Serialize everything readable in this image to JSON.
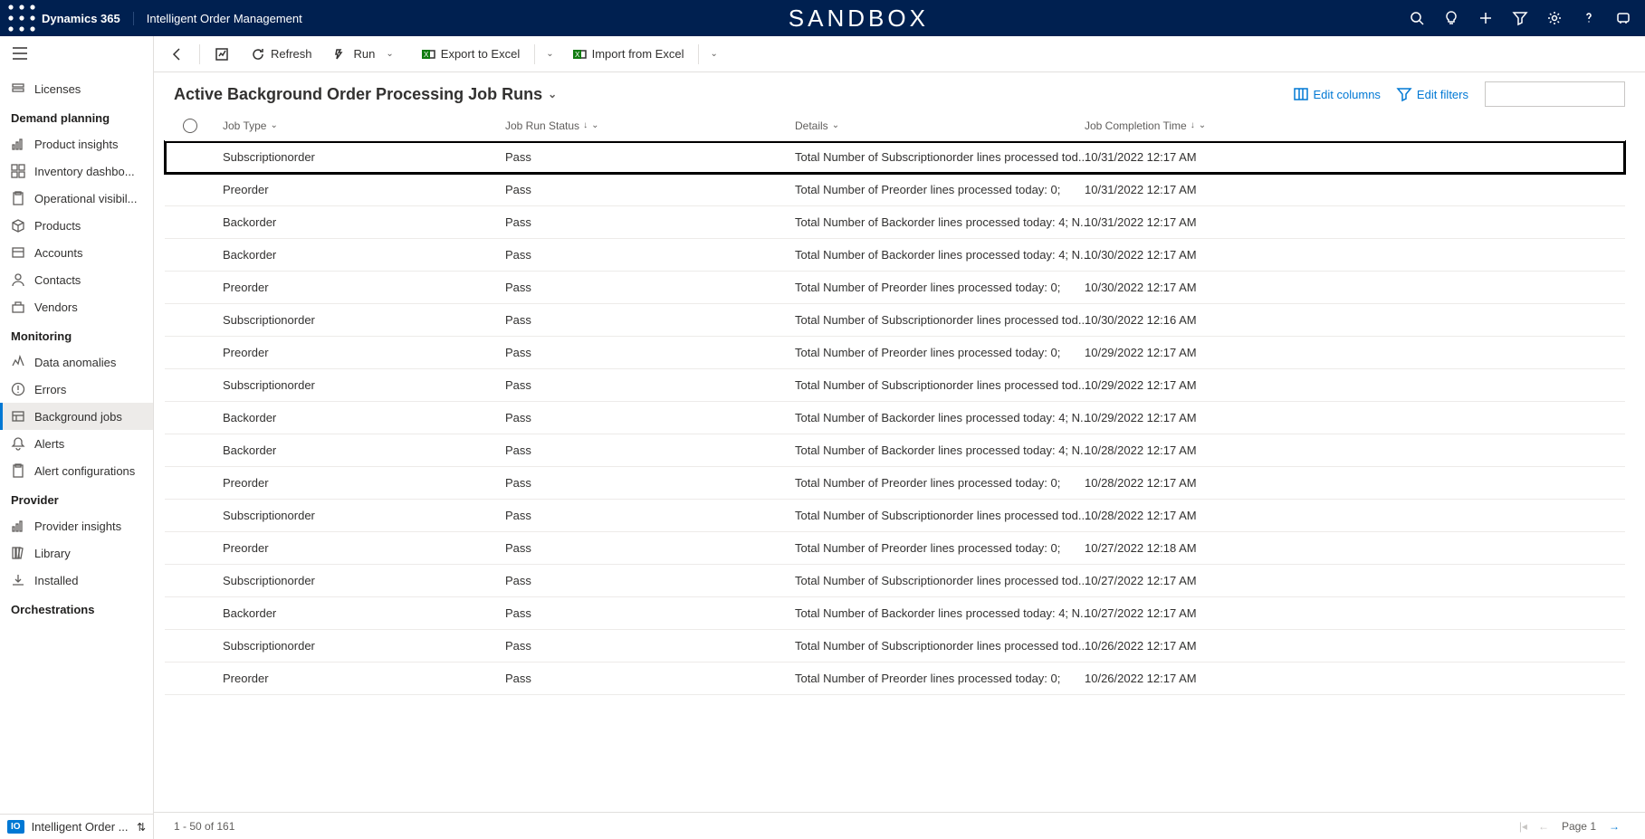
{
  "topbar": {
    "brand": "Dynamics 365",
    "app_name": "Intelligent Order Management",
    "environment": "SANDBOX"
  },
  "nav": {
    "top_item": "Licenses",
    "groups": [
      {
        "header": "Demand planning",
        "items": [
          {
            "icon": "insights",
            "label": "Product insights"
          },
          {
            "icon": "dashboard",
            "label": "Inventory dashbo..."
          },
          {
            "icon": "clipboard",
            "label": "Operational visibil..."
          },
          {
            "icon": "box",
            "label": "Products"
          },
          {
            "icon": "account",
            "label": "Accounts"
          },
          {
            "icon": "person",
            "label": "Contacts"
          },
          {
            "icon": "vendor",
            "label": "Vendors"
          }
        ]
      },
      {
        "header": "Monitoring",
        "items": [
          {
            "icon": "anomaly",
            "label": "Data anomalies"
          },
          {
            "icon": "error",
            "label": "Errors"
          },
          {
            "icon": "jobs",
            "label": "Background jobs",
            "active": true
          },
          {
            "icon": "bell",
            "label": "Alerts"
          },
          {
            "icon": "clipboard",
            "label": "Alert configurations"
          }
        ]
      },
      {
        "header": "Provider",
        "items": [
          {
            "icon": "insights",
            "label": "Provider insights"
          },
          {
            "icon": "library",
            "label": "Library"
          },
          {
            "icon": "download",
            "label": "Installed"
          }
        ]
      },
      {
        "header": "Orchestrations",
        "items": []
      }
    ],
    "footer": {
      "badge": "IO",
      "label": "Intelligent Order ..."
    }
  },
  "cmd": {
    "refresh": "Refresh",
    "run": "Run",
    "export": "Export to Excel",
    "import": "Import from Excel"
  },
  "view": {
    "title": "Active Background Order Processing Job Runs",
    "edit_columns": "Edit columns",
    "edit_filters": "Edit filters"
  },
  "grid": {
    "headers": {
      "jobtype": "Job Type",
      "status": "Job Run Status",
      "details": "Details",
      "time": "Job Completion Time"
    },
    "rows": [
      {
        "jobtype": "Subscriptionorder",
        "status": "Pass",
        "details": "Total Number of Subscriptionorder lines processed tod...",
        "time": "10/31/2022 12:17 AM",
        "highlight": true
      },
      {
        "jobtype": "Preorder",
        "status": "Pass",
        "details": "Total Number of Preorder lines processed today: 0;",
        "time": "10/31/2022 12:17 AM"
      },
      {
        "jobtype": "Backorder",
        "status": "Pass",
        "details": "Total Number of Backorder lines processed today: 4; N...",
        "time": "10/31/2022 12:17 AM"
      },
      {
        "jobtype": "Backorder",
        "status": "Pass",
        "details": "Total Number of Backorder lines processed today: 4; N...",
        "time": "10/30/2022 12:17 AM"
      },
      {
        "jobtype": "Preorder",
        "status": "Pass",
        "details": "Total Number of Preorder lines processed today: 0;",
        "time": "10/30/2022 12:17 AM"
      },
      {
        "jobtype": "Subscriptionorder",
        "status": "Pass",
        "details": "Total Number of Subscriptionorder lines processed tod...",
        "time": "10/30/2022 12:16 AM"
      },
      {
        "jobtype": "Preorder",
        "status": "Pass",
        "details": "Total Number of Preorder lines processed today: 0;",
        "time": "10/29/2022 12:17 AM"
      },
      {
        "jobtype": "Subscriptionorder",
        "status": "Pass",
        "details": "Total Number of Subscriptionorder lines processed tod...",
        "time": "10/29/2022 12:17 AM"
      },
      {
        "jobtype": "Backorder",
        "status": "Pass",
        "details": "Total Number of Backorder lines processed today: 4; N...",
        "time": "10/29/2022 12:17 AM"
      },
      {
        "jobtype": "Backorder",
        "status": "Pass",
        "details": "Total Number of Backorder lines processed today: 4; N...",
        "time": "10/28/2022 12:17 AM"
      },
      {
        "jobtype": "Preorder",
        "status": "Pass",
        "details": "Total Number of Preorder lines processed today: 0;",
        "time": "10/28/2022 12:17 AM"
      },
      {
        "jobtype": "Subscriptionorder",
        "status": "Pass",
        "details": "Total Number of Subscriptionorder lines processed tod...",
        "time": "10/28/2022 12:17 AM"
      },
      {
        "jobtype": "Preorder",
        "status": "Pass",
        "details": "Total Number of Preorder lines processed today: 0;",
        "time": "10/27/2022 12:18 AM"
      },
      {
        "jobtype": "Subscriptionorder",
        "status": "Pass",
        "details": "Total Number of Subscriptionorder lines processed tod...",
        "time": "10/27/2022 12:17 AM"
      },
      {
        "jobtype": "Backorder",
        "status": "Pass",
        "details": "Total Number of Backorder lines processed today: 4; N...",
        "time": "10/27/2022 12:17 AM"
      },
      {
        "jobtype": "Subscriptionorder",
        "status": "Pass",
        "details": "Total Number of Subscriptionorder lines processed tod...",
        "time": "10/26/2022 12:17 AM"
      },
      {
        "jobtype": "Preorder",
        "status": "Pass",
        "details": "Total Number of Preorder lines processed today: 0;",
        "time": "10/26/2022 12:17 AM"
      }
    ],
    "footer": {
      "range": "1 - 50 of 161",
      "page": "Page 1"
    }
  }
}
